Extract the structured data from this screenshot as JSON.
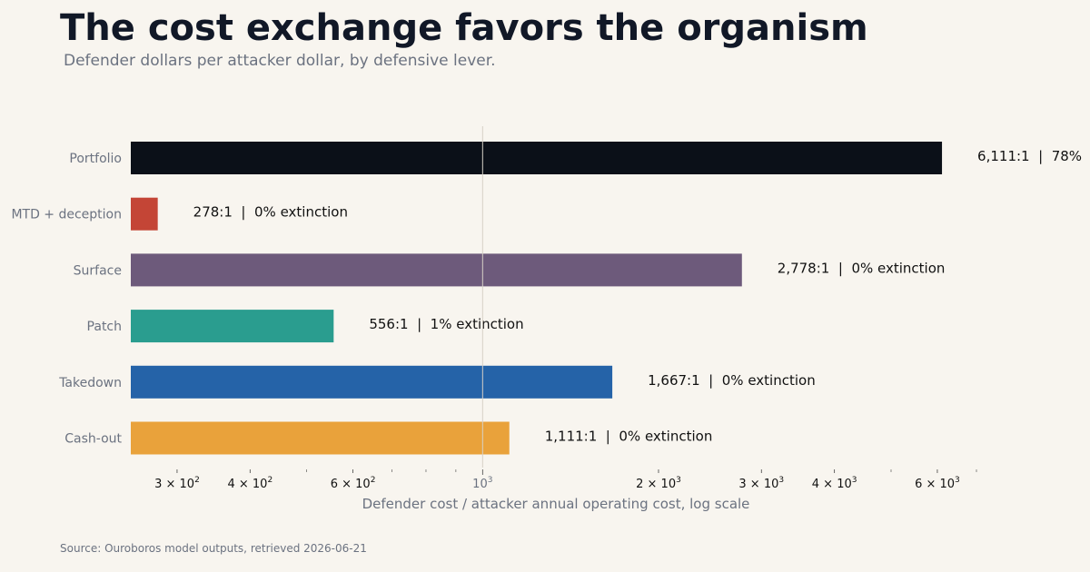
{
  "header": {
    "title": "The cost exchange favors the organism",
    "subtitle": "Defender dollars per attacker dollar, by defensive lever."
  },
  "footer": {
    "source": "Source: Ouroboros model outputs, retrieved 2026-06-21"
  },
  "chart_data": {
    "type": "bar",
    "orientation": "horizontal",
    "x_scale": "log",
    "xlim": [
      250,
      7000
    ],
    "xlabel": "Defender cost / attacker annual operating cost, log scale",
    "reference_line": 1000,
    "categories": [
      "Portfolio",
      "MTD + deception",
      "Surface",
      "Patch",
      "Takedown",
      "Cash-out"
    ],
    "values": [
      6111,
      278,
      2778,
      556,
      1667,
      1111
    ],
    "value_labels": [
      "6,111:1  |  78%",
      "278:1  |  0% extinction",
      "2,778:1  |  0% extinction",
      "556:1  |  1% extinction",
      "1,667:1  |  0% extinction",
      "1,111:1  |  0% extinction"
    ],
    "colors": [
      "#0b1018",
      "#c44536",
      "#6d5a7b",
      "#2a9d8f",
      "#2563a8",
      "#e9a23b"
    ],
    "x_ticks": [
      {
        "value": 300,
        "mantissa": "3",
        "exp": "2"
      },
      {
        "value": 400,
        "mantissa": "4",
        "exp": "2"
      },
      {
        "value": 600,
        "mantissa": "6",
        "exp": "2"
      },
      {
        "value": 1000,
        "mantissa": "",
        "exp": "3"
      },
      {
        "value": 2000,
        "mantissa": "2",
        "exp": "3"
      },
      {
        "value": 3000,
        "mantissa": "3",
        "exp": "3"
      },
      {
        "value": 4000,
        "mantissa": "4",
        "exp": "3"
      },
      {
        "value": 6000,
        "mantissa": "6",
        "exp": "3"
      }
    ],
    "x_minor_ticks": [
      500,
      700,
      800,
      900,
      5000,
      7000
    ],
    "grid": false,
    "legend": "none"
  }
}
